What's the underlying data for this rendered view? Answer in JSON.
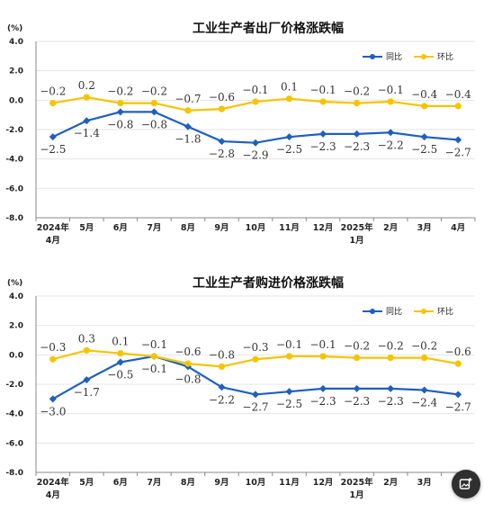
{
  "colors": {
    "yoy": "#1f5fbf",
    "mom": "#f5c400",
    "axis": "#888888",
    "grid": "#e5e5e5"
  },
  "chart_data": [
    {
      "type": "line",
      "title": "工业生产者出厂价格涨跌幅",
      "unit": "(%)",
      "ylim": [
        -8.0,
        4.0
      ],
      "yticks": [
        "4.0",
        "2.0",
        "0.0",
        "-2.0",
        "-4.0",
        "-6.0",
        "-8.0"
      ],
      "categories": [
        [
          "2024年",
          "4月"
        ],
        [
          "5月"
        ],
        [
          "6月"
        ],
        [
          "7月"
        ],
        [
          "8月"
        ],
        [
          "9月"
        ],
        [
          "10月"
        ],
        [
          "11月"
        ],
        [
          "12月"
        ],
        [
          "2025年",
          "1月"
        ],
        [
          "2月"
        ],
        [
          "3月"
        ],
        [
          "4月"
        ]
      ],
      "legend_position": "top-right",
      "series": [
        {
          "name": "同比",
          "color": "#1f5fbf",
          "values": [
            -2.5,
            -1.4,
            -0.8,
            -0.8,
            -1.8,
            -2.8,
            -2.9,
            -2.5,
            -2.3,
            -2.3,
            -2.2,
            -2.5,
            -2.7
          ],
          "labels": [
            "-2.5",
            "-1.4",
            "-0.8",
            "-0.8",
            "-1.8",
            "-2.8",
            "-2.9",
            "-2.5",
            "-2.3",
            "-2.3",
            "-2.2",
            "-2.5",
            "-2.7"
          ]
        },
        {
          "name": "环比",
          "color": "#f5c400",
          "values": [
            -0.2,
            0.2,
            -0.2,
            -0.2,
            -0.7,
            -0.6,
            -0.1,
            0.1,
            -0.1,
            -0.2,
            -0.1,
            -0.4,
            -0.4
          ],
          "labels": [
            "-0.2",
            "0.2",
            "-0.2",
            "-0.2",
            "-0.7",
            "-0.6",
            "-0.1",
            "0.1",
            "-0.1",
            "-0.2",
            "-0.1",
            "-0.4",
            "-0.4"
          ]
        }
      ]
    },
    {
      "type": "line",
      "title": "工业生产者购进价格涨跌幅",
      "unit": "(%)",
      "ylim": [
        -8.0,
        4.0
      ],
      "yticks": [
        "4.0",
        "2.0",
        "0.0",
        "-2.0",
        "-4.0",
        "-6.0",
        "-8.0"
      ],
      "categories": [
        [
          "2024年",
          "4月"
        ],
        [
          "5月"
        ],
        [
          "6月"
        ],
        [
          "7月"
        ],
        [
          "8月"
        ],
        [
          "9月"
        ],
        [
          "10月"
        ],
        [
          "11月"
        ],
        [
          "12月"
        ],
        [
          "2025年",
          "1月"
        ],
        [
          "2月"
        ],
        [
          "3月"
        ],
        [
          ""
        ]
      ],
      "legend_position": "top-right",
      "series": [
        {
          "name": "同比",
          "color": "#1f5fbf",
          "values": [
            -3.0,
            -1.7,
            -0.5,
            -0.1,
            -0.8,
            -2.2,
            -2.7,
            -2.5,
            -2.3,
            -2.3,
            -2.3,
            -2.4,
            -2.7
          ],
          "labels": [
            "-3.0",
            "-1.7",
            "-0.5",
            "-0.1",
            "-0.8",
            "-2.2",
            "-2.7",
            "-2.5",
            "-2.3",
            "-2.3",
            "-2.3",
            "-2.4",
            "-2.7"
          ]
        },
        {
          "name": "环比",
          "color": "#f5c400",
          "values": [
            -0.3,
            0.3,
            0.1,
            -0.1,
            -0.6,
            -0.8,
            -0.3,
            -0.1,
            -0.1,
            -0.2,
            -0.2,
            -0.2,
            -0.6
          ],
          "labels": [
            "-0.3",
            "0.3",
            "0.1",
            "-0.1",
            "-0.6",
            "-0.8",
            "-0.3",
            "-0.1",
            "-0.1",
            "-0.2",
            "-0.2",
            "-0.2",
            "-0.6"
          ]
        }
      ]
    }
  ],
  "fab": {
    "icon": "image-edit-icon"
  }
}
